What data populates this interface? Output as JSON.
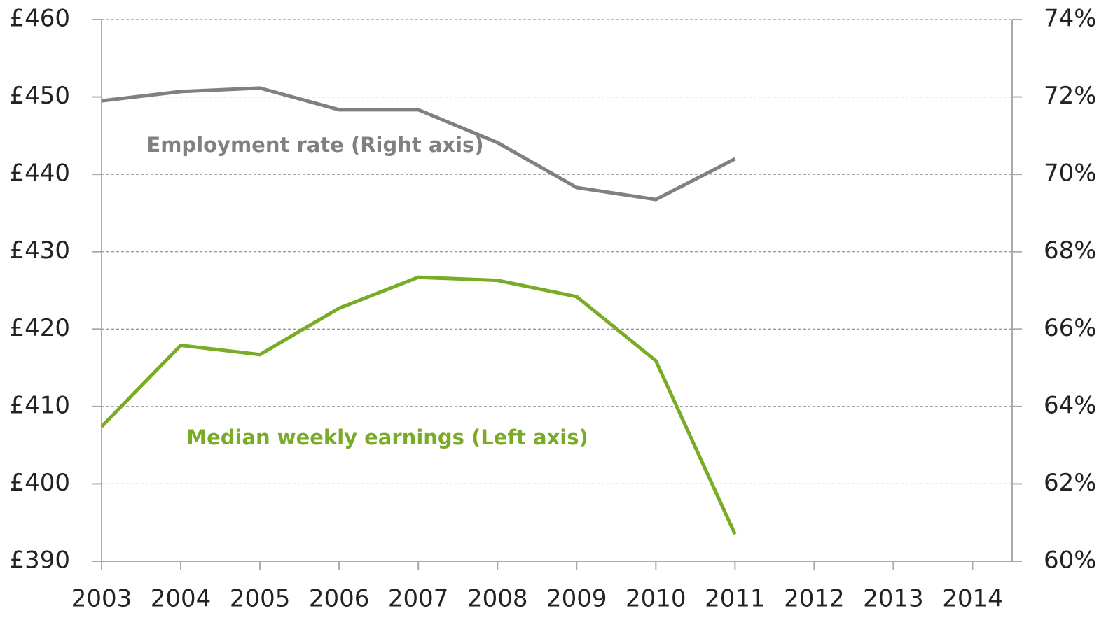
{
  "chart_data": {
    "type": "line",
    "x": [
      2003,
      2004,
      2005,
      2006,
      2007,
      2008,
      2009,
      2010,
      2011
    ],
    "xlim": [
      2003,
      2014.5
    ],
    "xticks": [
      2003,
      2004,
      2005,
      2006,
      2007,
      2008,
      2009,
      2010,
      2011,
      2012,
      2013,
      2014
    ],
    "ylim": [
      390,
      460
    ],
    "yticks": [
      {
        "value": 390,
        "label": "£390"
      },
      {
        "value": 400,
        "label": "£400"
      },
      {
        "value": 410,
        "label": "£410"
      },
      {
        "value": 420,
        "label": "£420"
      },
      {
        "value": 430,
        "label": "£430"
      },
      {
        "value": 440,
        "label": "£440"
      },
      {
        "value": 450,
        "label": "£450"
      },
      {
        "value": 460,
        "label": "£460"
      }
    ],
    "y2lim": [
      60,
      74
    ],
    "y2ticks": [
      {
        "value": 60,
        "label": "60%"
      },
      {
        "value": 62,
        "label": "62%"
      },
      {
        "value": 64,
        "label": "64%"
      },
      {
        "value": 66,
        "label": "66%"
      },
      {
        "value": 68,
        "label": "68%"
      },
      {
        "value": 70,
        "label": "70%"
      },
      {
        "value": 72,
        "label": "72%"
      },
      {
        "value": 74,
        "label": "74%"
      }
    ],
    "grid": true,
    "series": [
      {
        "name": "Median weekly earnings (Left axis)",
        "color": "#7aab27",
        "axis": "y",
        "values": [
          407.4,
          417.9,
          416.7,
          422.7,
          426.7,
          426.3,
          424.2,
          415.9,
          393.5
        ]
      },
      {
        "name": "Employment rate (Right axis)",
        "color": "#808080",
        "axis": "y2",
        "values": [
          71.9,
          72.14,
          72.23,
          71.67,
          71.67,
          70.82,
          69.66,
          69.35,
          70.4
        ]
      }
    ]
  }
}
